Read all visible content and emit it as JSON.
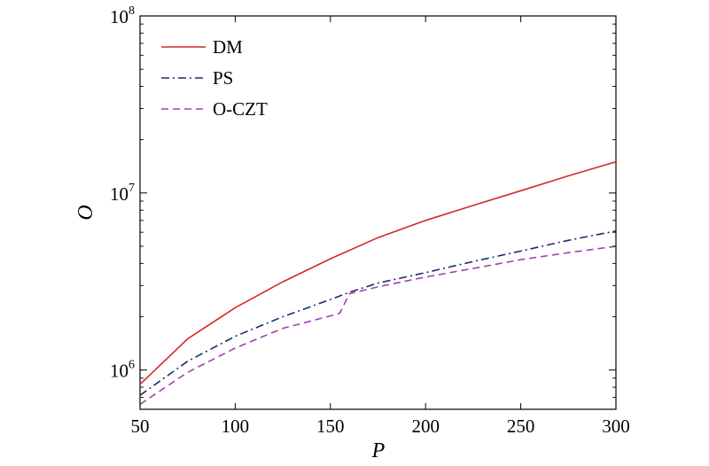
{
  "chart_data": {
    "type": "line",
    "xlabel": "P",
    "ylabel": "O",
    "xlim": [
      50,
      300
    ],
    "ylim": [
      600000,
      100000000
    ],
    "yscale": "log",
    "grid": false,
    "legend_position": "top-left",
    "x_ticks": [
      50,
      100,
      150,
      200,
      250,
      300
    ],
    "x_tick_labels": [
      "50",
      "100",
      "150",
      "200",
      "250",
      "300"
    ],
    "y_ticks": [
      1000000,
      10000000,
      100000000
    ],
    "y_tick_labels": [
      {
        "base": "10",
        "exp": "6"
      },
      {
        "base": "10",
        "exp": "7"
      },
      {
        "base": "10",
        "exp": "8"
      }
    ],
    "series": [
      {
        "name": "DM",
        "color": "#d62728",
        "style": "solid",
        "x": [
          50,
          75,
          100,
          125,
          150,
          175,
          200,
          225,
          250,
          275,
          300
        ],
        "y": [
          830000,
          1500000,
          2250000,
          3150000,
          4250000,
          5600000,
          7000000,
          8500000,
          10300000,
          12500000,
          15000000
        ]
      },
      {
        "name": "PS",
        "color": "#1f2a6e",
        "style": "dashdot",
        "x": [
          50,
          75,
          100,
          125,
          150,
          160,
          175,
          200,
          225,
          250,
          275,
          300
        ],
        "y": [
          720000,
          1120000,
          1550000,
          2000000,
          2500000,
          2750000,
          3100000,
          3550000,
          4100000,
          4700000,
          5400000,
          6100000
        ]
      },
      {
        "name": "O-CZT",
        "color": "#a040b0",
        "style": "dashed",
        "x": [
          50,
          75,
          100,
          125,
          150,
          155,
          160,
          175,
          200,
          225,
          250,
          275,
          300
        ],
        "y": [
          640000,
          970000,
          1330000,
          1720000,
          2020000,
          2100000,
          2700000,
          2950000,
          3350000,
          3750000,
          4200000,
          4600000,
          5000000
        ]
      }
    ]
  }
}
